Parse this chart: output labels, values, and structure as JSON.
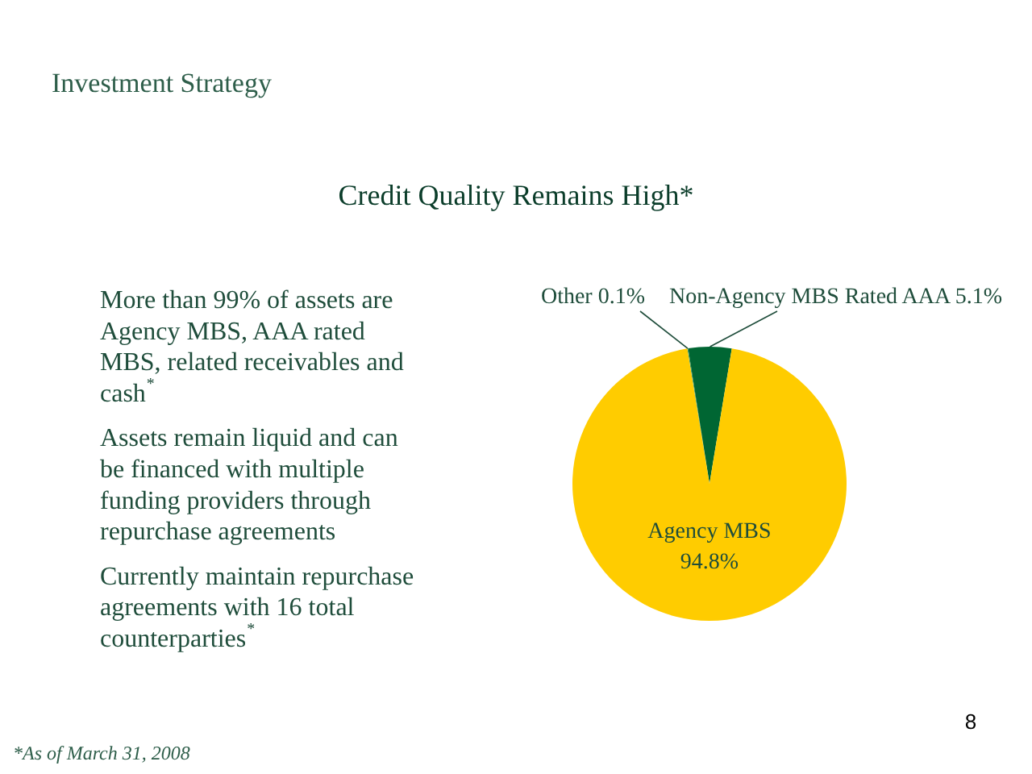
{
  "chart_data": {
    "type": "pie",
    "title": "Investment Strategy",
    "subtitle": "Credit Quality Remains High*",
    "categories": [
      "Other",
      "Non-Agency MBS Rated AAA",
      "Agency MBS"
    ],
    "values": [
      0.1,
      5.1,
      94.8
    ],
    "colors": [
      "#339966",
      "#006633",
      "#ffcc00"
    ],
    "value_labels": [
      "0.1%",
      "5.1%",
      "94.8%"
    ],
    "annotations": [
      "More than 99% of assets are Agency MBS, AAA rated MBS, related receivables and cash$^{*}$",
      "Assets remain liquid and can be financed with multiple funding providers through repurchase agreements",
      "Currently maintain repurchase agreements with 16 total counterparties$^{*}$",
      "*As of March 31, 2008",
      "8"
    ]
  }
}
